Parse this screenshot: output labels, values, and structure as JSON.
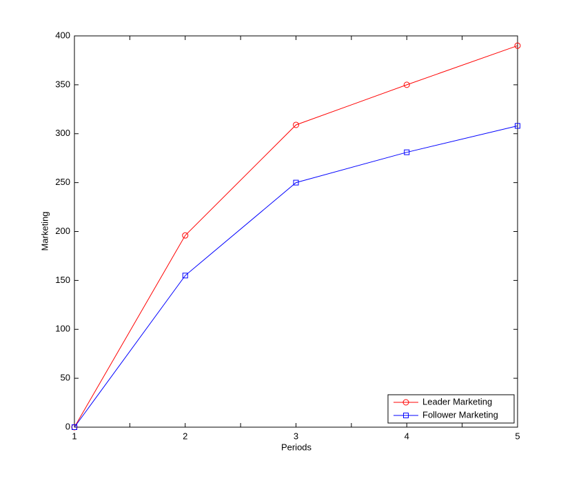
{
  "chart_data": {
    "type": "line",
    "xlabel": "Periods",
    "ylabel": "Marketing",
    "x": [
      1,
      2,
      3,
      4,
      5
    ],
    "series": [
      {
        "name": "Leader Marketing",
        "color": "#ff0000",
        "marker": "circle",
        "values": [
          0,
          196,
          309,
          350,
          390
        ]
      },
      {
        "name": "Follower Marketing",
        "color": "#0000ff",
        "marker": "square",
        "values": [
          0,
          155,
          250,
          281,
          308
        ]
      }
    ],
    "xlim": [
      1,
      5
    ],
    "xticks": [
      1,
      2,
      3,
      4,
      5
    ],
    "ylim": [
      0,
      400
    ],
    "yticks": [
      0,
      50,
      100,
      150,
      200,
      250,
      300,
      350,
      400
    ],
    "grid": false,
    "legend": "lower right"
  }
}
